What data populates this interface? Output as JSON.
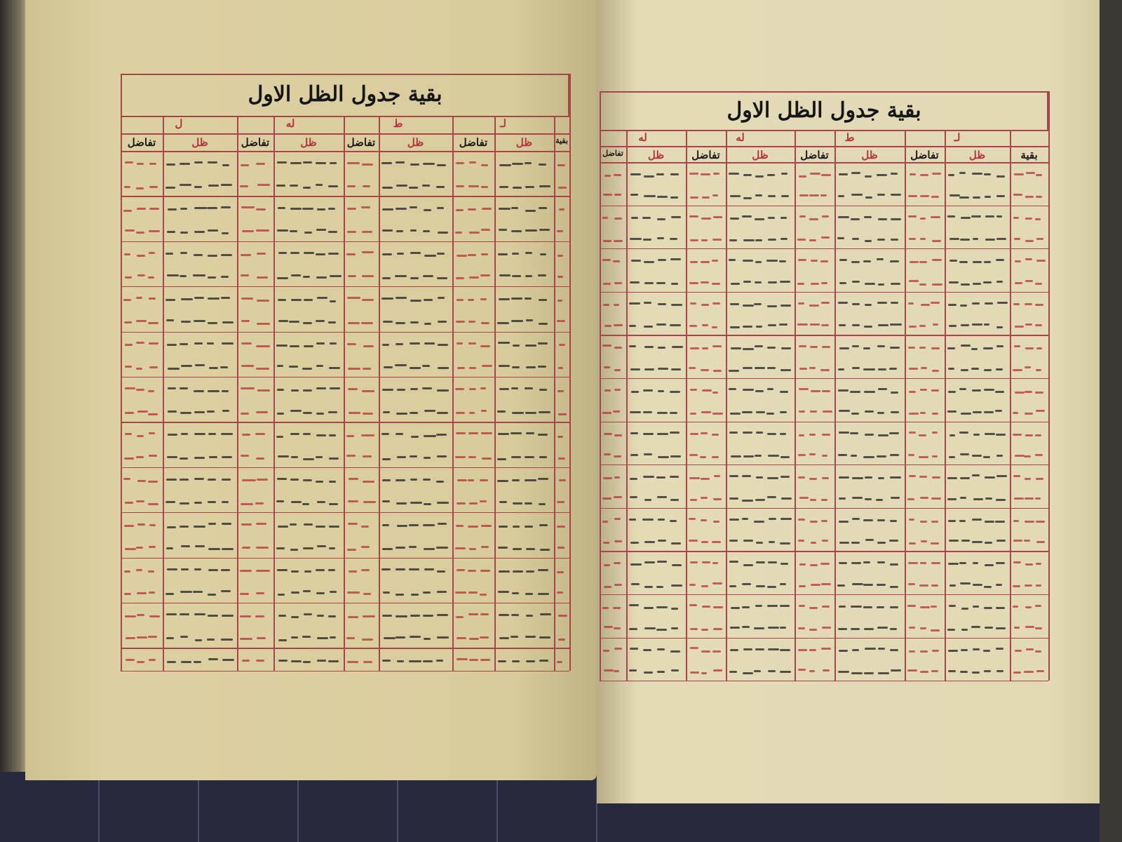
{
  "left_page": {
    "title": "بقية جدول الظل الاول",
    "groups": [
      "ل",
      "له",
      "ط",
      "لـ"
    ],
    "column_headers": [
      "تفاضل",
      "ظل",
      "تفاضل",
      "ظل",
      "تفاضل",
      "ظل",
      "تفاضل",
      "ظل",
      "بقية"
    ]
  },
  "right_page": {
    "title": "بقية جدول الظل الاول",
    "groups": [
      "له",
      "له",
      "ط",
      "لـ"
    ],
    "column_headers": [
      "تفاضل",
      "ظل",
      "تفاضل",
      "ظل",
      "تفاضل",
      "ظل",
      "تفاضل",
      "ظل",
      "بقية"
    ]
  },
  "colors": {
    "ink": "#1a1a1a",
    "rubric": "#b3343c",
    "rule": "#a8454a",
    "paper": "#ddd0a2"
  }
}
